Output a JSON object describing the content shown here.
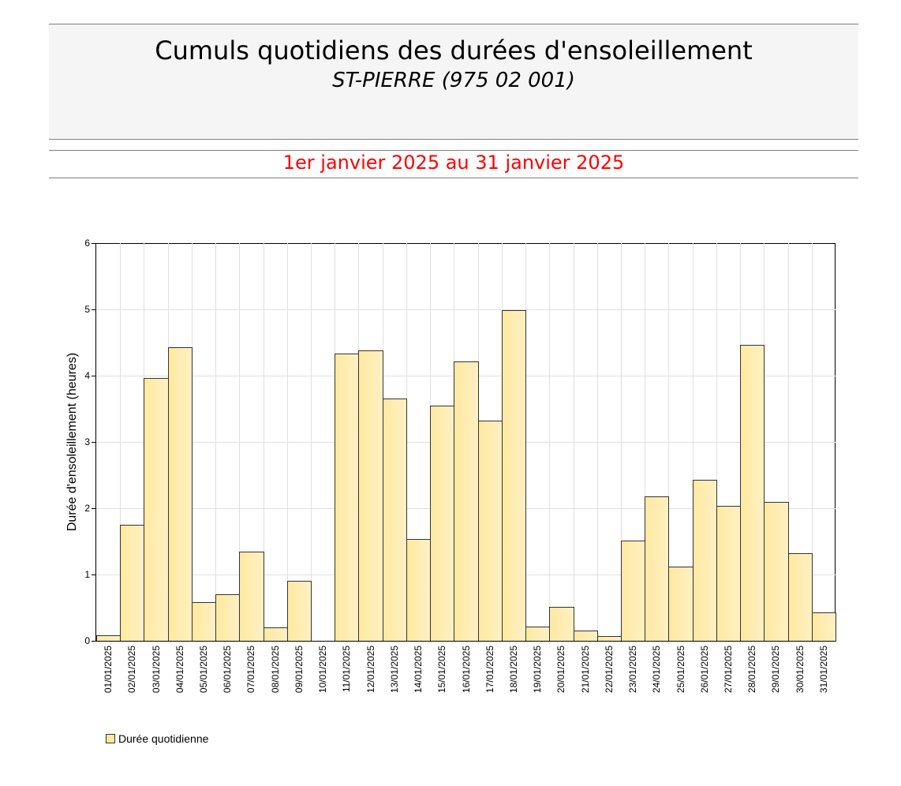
{
  "header": {
    "title": "Cumuls quotidiens des durées d'ensoleillement",
    "subtitle": "ST-PIERRE (975 02 001)",
    "period": "1er janvier 2025 au 31 janvier 2025"
  },
  "legend": {
    "label": "Durée quotidienne",
    "color": "#ffe9a0"
  },
  "chart_data": {
    "type": "bar",
    "title": "Cumuls quotidiens des durées d'ensoleillement",
    "subtitle": "ST-PIERRE (975 02 001)",
    "period": "1er janvier 2025 au 31 janvier 2025",
    "xlabel": "",
    "ylabel": "Durée d'ensoleillement (heures)",
    "ylim": [
      0,
      6
    ],
    "yticks": [
      0,
      1,
      2,
      3,
      4,
      5,
      6
    ],
    "grid": true,
    "legend_position": "bottom-left",
    "categories": [
      "01/01/2025",
      "02/01/2025",
      "03/01/2025",
      "04/01/2025",
      "05/01/2025",
      "06/01/2025",
      "07/01/2025",
      "08/01/2025",
      "09/01/2025",
      "10/01/2025",
      "11/01/2025",
      "12/01/2025",
      "13/01/2025",
      "14/01/2025",
      "15/01/2025",
      "16/01/2025",
      "17/01/2025",
      "18/01/2025",
      "19/01/2025",
      "20/01/2025",
      "21/01/2025",
      "22/01/2025",
      "23/01/2025",
      "24/01/2025",
      "25/01/2025",
      "26/01/2025",
      "27/01/2025",
      "28/01/2025",
      "29/01/2025",
      "30/01/2025",
      "31/01/2025"
    ],
    "series": [
      {
        "name": "Durée quotidienne",
        "color": "#ffe9a0",
        "values": [
          0.08,
          1.75,
          3.97,
          4.43,
          0.58,
          0.7,
          1.34,
          0.2,
          0.9,
          0.0,
          4.33,
          4.38,
          3.65,
          1.54,
          3.55,
          4.21,
          3.32,
          4.99,
          0.21,
          0.51,
          0.15,
          0.07,
          1.51,
          2.18,
          1.12,
          2.43,
          2.04,
          4.46,
          2.1,
          1.32,
          0.43
        ]
      }
    ]
  }
}
